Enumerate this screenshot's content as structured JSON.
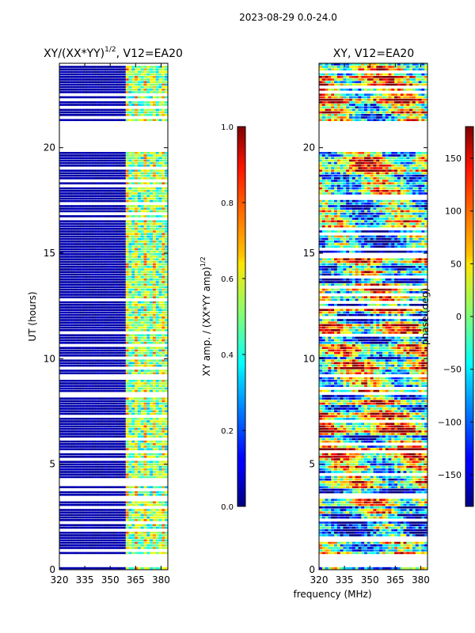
{
  "chart_data": {
    "type": "heatmap",
    "suptitle": "2023-08-29 0.0-24.0",
    "xlabel": "frequency (MHz)",
    "panels": [
      {
        "title_base": "XY/(XX*YY)",
        "title_sup": "1/2",
        "title_suffix": ", V12=EA20",
        "ylabel": "UT (hours)",
        "xlim": [
          320,
          384
        ],
        "ylim": [
          0,
          24
        ],
        "xticks": [
          320,
          335,
          350,
          365,
          380
        ],
        "yticks": [
          0,
          5,
          10,
          15,
          20
        ],
        "colormap": "jet",
        "clim": [
          0,
          1
        ],
        "colorbar_label_base": "XY amp. / (XX*YY amp)",
        "colorbar_label_sup": "1/2",
        "colorbar_ticks": [
          "0.0",
          "0.2",
          "0.4",
          "0.6",
          "0.8",
          "1.0"
        ],
        "colorbar_tick_values": [
          0,
          0.2,
          0.4,
          0.6,
          0.8,
          1.0
        ],
        "gap_ut_ranges": [
          [
            0.1,
            0.7
          ],
          [
            19.8,
            21.2
          ]
        ],
        "high_value_band_mhz": [
          360,
          384
        ]
      },
      {
        "title_base": "XY, V12=EA20",
        "ylabel": "",
        "xlim": [
          320,
          384
        ],
        "ylim": [
          0,
          24
        ],
        "xticks": [
          320,
          335,
          350,
          365,
          380
        ],
        "yticks": [
          0,
          5,
          10,
          15,
          20
        ],
        "colormap": "jet",
        "clim": [
          -180,
          180
        ],
        "colorbar_label_base": "phase (deg)",
        "colorbar_ticks": [
          "−150",
          "−100",
          "−50",
          "0",
          "50",
          "100",
          "150"
        ],
        "colorbar_tick_values": [
          -150,
          -100,
          -50,
          0,
          50,
          100,
          150
        ],
        "gap_ut_ranges": [
          [
            0.1,
            0.7
          ],
          [
            19.8,
            21.2
          ]
        ]
      }
    ]
  }
}
